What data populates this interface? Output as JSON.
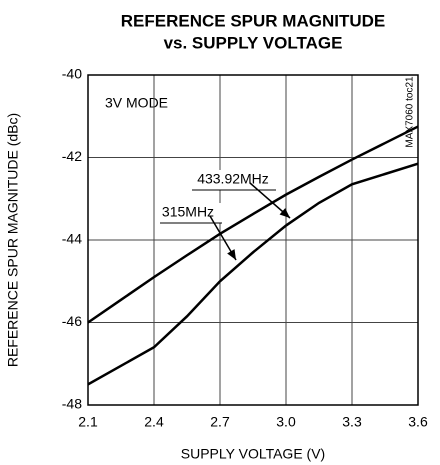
{
  "chart_data": {
    "type": "line",
    "title": [
      "REFERENCE SPUR MAGNITUDE",
      "vs. SUPPLY VOLTAGE"
    ],
    "xlabel": "SUPPLY VOLTAGE (V)",
    "ylabel": "REFERENCE SPUR MAGNITUDE (dBc)",
    "annotations": [
      "3V MODE",
      "MAX7060 toc21"
    ],
    "x": [
      2.1,
      2.25,
      2.4,
      2.55,
      2.7,
      2.85,
      3.0,
      3.15,
      3.3,
      3.45,
      3.6
    ],
    "series": [
      {
        "name": "433.92MHz",
        "color": "#000000",
        "values": [
          -46.0,
          -45.45,
          -44.9,
          -44.37,
          -43.85,
          -43.37,
          -42.9,
          -42.47,
          -42.05,
          -41.65,
          -41.25
        ]
      },
      {
        "name": "315MHz",
        "color": "#000000",
        "values": [
          -47.5,
          -47.05,
          -46.6,
          -45.85,
          -45.0,
          -44.3,
          -43.65,
          -43.1,
          -42.65,
          -42.4,
          -42.15
        ]
      }
    ],
    "xlim": [
      2.1,
      3.6
    ],
    "xticks": [
      2.1,
      2.4,
      2.7,
      {
        "value": 3,
        "label": "3.0"
      },
      3.3,
      3.6
    ],
    "ylim": [
      -48,
      -40
    ],
    "yticks": [
      -40,
      -42,
      -44,
      -46,
      -48
    ],
    "grid": true
  }
}
